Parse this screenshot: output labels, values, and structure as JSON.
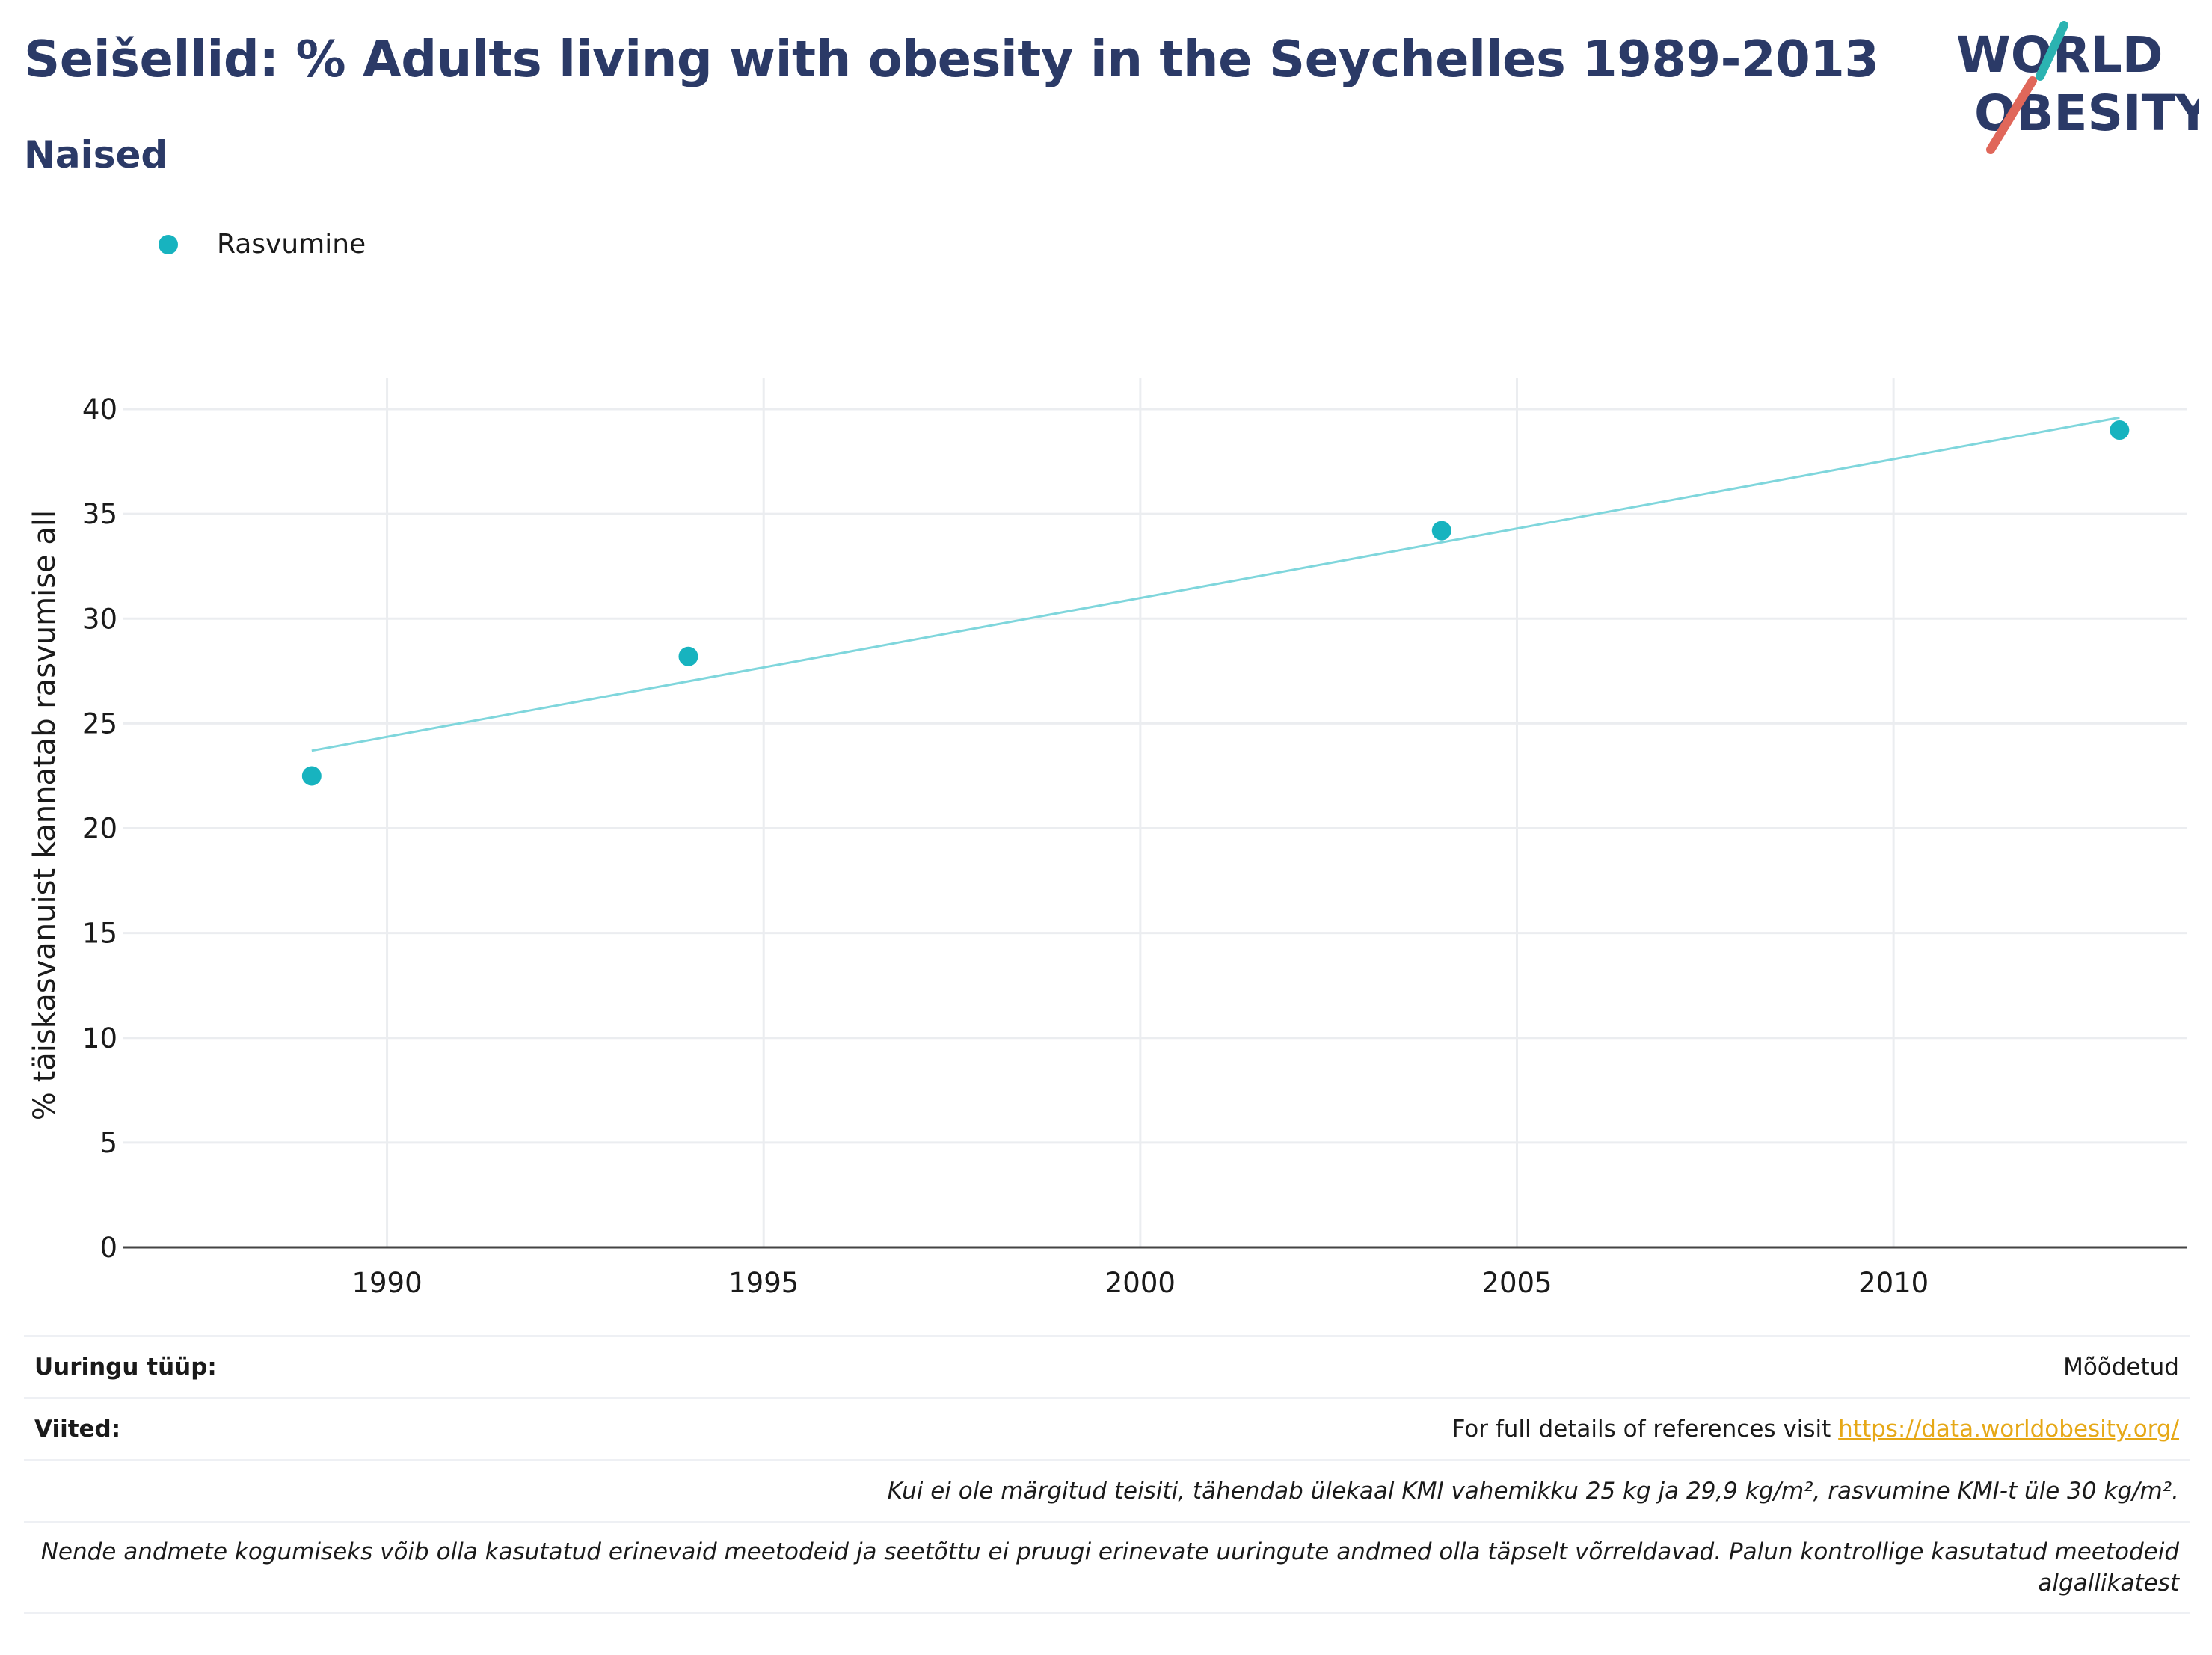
{
  "header": {
    "title": "Seišellid: % Adults living with obesity in the Seychelles 1989-2013",
    "subtitle": "Naised"
  },
  "logo": {
    "line1": "WORLD",
    "line2": "OBESITY",
    "colors": {
      "text": "#2b3a67",
      "slash_top": "#2bb3b1",
      "slash_bottom": "#e0675a"
    }
  },
  "legend": {
    "label": "Rasvumine",
    "color": "#17b3bf"
  },
  "chart_data": {
    "type": "scatter",
    "ylabel": "% täiskasvanuist kannatab rasvumise all",
    "xlim": [
      1986.5,
      2013.9
    ],
    "ylim": [
      0,
      41.5
    ],
    "x_ticks": [
      1990,
      1995,
      2000,
      2005,
      2010
    ],
    "y_ticks": [
      0,
      5,
      10,
      15,
      20,
      25,
      30,
      35,
      40
    ],
    "grid": true,
    "series": [
      {
        "name": "Rasvumine",
        "color": "#17b3bf",
        "points": [
          {
            "x": 1989,
            "y": 22.5
          },
          {
            "x": 1994,
            "y": 28.2
          },
          {
            "x": 2004,
            "y": 34.2
          },
          {
            "x": 2013,
            "y": 39.0
          }
        ]
      }
    ],
    "trendline": {
      "color": "#7fd6dc",
      "start": {
        "x": 1989,
        "y": 23.7
      },
      "end": {
        "x": 2013,
        "y": 39.6
      }
    }
  },
  "info": {
    "survey_label": "Uuringu tüüp:",
    "survey_value": "Mõõdetud",
    "refs_label": "Viited:",
    "refs_text": "For full details of references visit ",
    "refs_link": "https://data.worldobesity.org/",
    "note_bmi": "Kui ei ole märgitud teisiti, tähendab ülekaal KMI vahemikku 25 kg ja 29,9 kg/m², rasvumine KMI-t üle 30 kg/m².",
    "note_methods": "Nende andmete kogumiseks võib olla kasutatud erinevaid meetodeid ja seetõttu ei pruugi erinevate uuringute andmed olla täpselt võrreldavad. Palun kontrollige kasutatud meetodeid algallikatest"
  }
}
